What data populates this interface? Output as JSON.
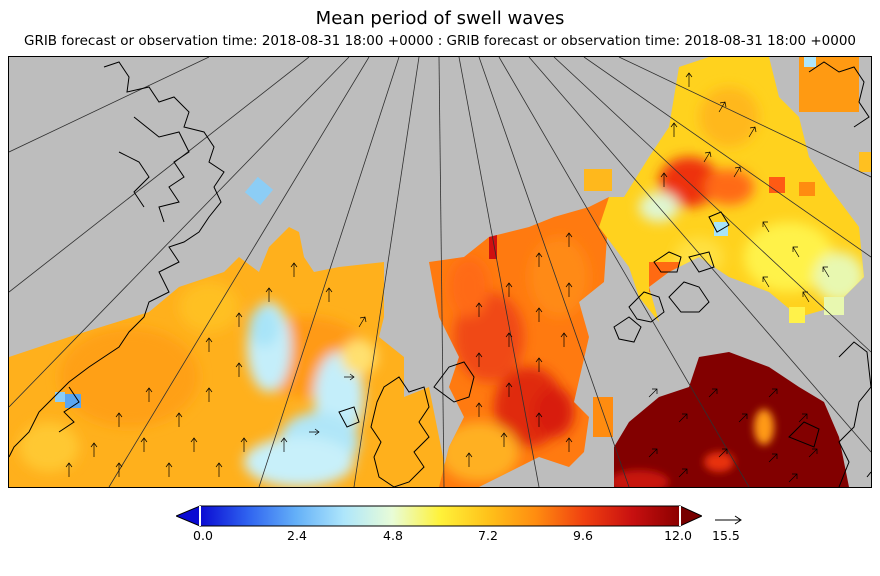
{
  "title": "Mean period of swell waves",
  "subtitle": "GRIB forecast or observation time: 2018-08-31 18:00 +0000 : GRIB forecast or observation time: 2018-08-31 18:00 +0000",
  "colors": {
    "land": "#bdbdbd",
    "coast": "#000000",
    "meridian": "#303030"
  },
  "colorbar": {
    "min": 0.0,
    "max": 12.0,
    "ticks": [
      "0.0",
      "2.4",
      "4.8",
      "7.2",
      "9.6",
      "12.0"
    ],
    "ramp": [
      "#0a0ad2",
      "#2f63f0",
      "#64b0f8",
      "#aee6fb",
      "#e8fcd8",
      "#fff23a",
      "#ffc21a",
      "#ff8c10",
      "#f04010",
      "#c81010",
      "#8c0000"
    ],
    "under_color": "#0a0ad2",
    "over_color": "#780000"
  },
  "vector_reference": {
    "label": "15.5",
    "icon": "arrow-right-icon"
  }
}
